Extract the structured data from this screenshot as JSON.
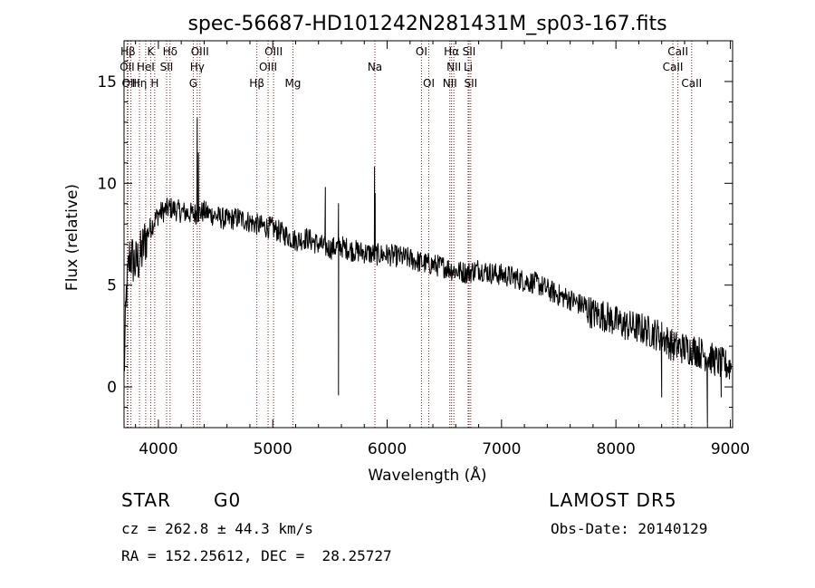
{
  "chart_data": {
    "type": "line",
    "title": "spec-56687-HD101242N281431M_sp03-167.fits",
    "xlabel": "Wavelength (Å)",
    "ylabel": "Flux (relative)",
    "xlim": [
      3700,
      9020
    ],
    "ylim": [
      -2,
      17
    ],
    "x_ticks": [
      4000,
      5000,
      6000,
      7000,
      8000,
      9000
    ],
    "y_ticks": [
      0,
      5,
      10,
      15
    ],
    "grid": false,
    "line_color": "#000000",
    "marker_color": "#8b1a1a",
    "spectrum_anchors": [
      [
        3700,
        0.5
      ],
      [
        3720,
        4.5
      ],
      [
        3750,
        6.5
      ],
      [
        3800,
        6.0
      ],
      [
        3850,
        6.5
      ],
      [
        3900,
        7.5
      ],
      [
        3950,
        8.0
      ],
      [
        4000,
        8.5
      ],
      [
        4100,
        8.8
      ],
      [
        4200,
        8.6
      ],
      [
        4300,
        8.5
      ],
      [
        4400,
        8.6
      ],
      [
        4500,
        8.4
      ],
      [
        4600,
        8.2
      ],
      [
        4700,
        8.3
      ],
      [
        4800,
        8.1
      ],
      [
        4900,
        7.9
      ],
      [
        5000,
        7.8
      ],
      [
        5100,
        7.5
      ],
      [
        5200,
        7.2
      ],
      [
        5300,
        7.3
      ],
      [
        5400,
        7.0
      ],
      [
        5500,
        6.8
      ],
      [
        5600,
        6.9
      ],
      [
        5700,
        6.7
      ],
      [
        5800,
        6.6
      ],
      [
        5900,
        6.5
      ],
      [
        6000,
        6.5
      ],
      [
        6100,
        6.4
      ],
      [
        6200,
        6.3
      ],
      [
        6300,
        6.1
      ],
      [
        6400,
        6.0
      ],
      [
        6500,
        5.9
      ],
      [
        6600,
        5.7
      ],
      [
        6700,
        5.6
      ],
      [
        6800,
        5.8
      ],
      [
        6900,
        5.6
      ],
      [
        7000,
        5.5
      ],
      [
        7100,
        5.4
      ],
      [
        7200,
        5.2
      ],
      [
        7300,
        5.1
      ],
      [
        7400,
        4.8
      ],
      [
        7500,
        4.5
      ],
      [
        7600,
        4.3
      ],
      [
        7700,
        4.0
      ],
      [
        7800,
        3.6
      ],
      [
        7900,
        3.5
      ],
      [
        8000,
        3.2
      ],
      [
        8100,
        3.0
      ],
      [
        8200,
        2.9
      ],
      [
        8300,
        2.7
      ],
      [
        8400,
        2.5
      ],
      [
        8500,
        2.0
      ],
      [
        8600,
        1.9
      ],
      [
        8700,
        1.8
      ],
      [
        8800,
        1.5
      ],
      [
        8900,
        1.2
      ],
      [
        9000,
        1.0
      ]
    ],
    "spectrum_features": [
      {
        "x": 4340,
        "y": 13.2
      },
      {
        "x": 4350,
        "y": 11.5
      },
      {
        "x": 5575,
        "y": -0.4
      },
      {
        "x": 5575,
        "y": 9.0
      },
      {
        "x": 5460,
        "y": 9.8
      },
      {
        "x": 5890,
        "y": 10.8
      },
      {
        "x": 5895,
        "y": 9.5
      },
      {
        "x": 8400,
        "y": -0.5
      },
      {
        "x": 8800,
        "y": -1.8
      },
      {
        "x": 8920,
        "y": -0.5
      }
    ],
    "lines": [
      {
        "label": "Hβ",
        "x": 3734,
        "tier": 1
      },
      {
        "label": "K",
        "x": 3933,
        "tier": 1
      },
      {
        "label": "Hδ",
        "x": 4102,
        "tier": 1
      },
      {
        "label": "OIII",
        "x": 4363,
        "tier": 1
      },
      {
        "label": "OIII",
        "x": 5007,
        "tier": 1
      },
      {
        "label": "OI",
        "x": 6300,
        "tier": 1
      },
      {
        "label": "Hα",
        "x": 6563,
        "tier": 1
      },
      {
        "label": "SII",
        "x": 6716,
        "tier": 1
      },
      {
        "label": "CaII",
        "x": 8542,
        "tier": 1
      },
      {
        "label": "OII",
        "x": 3727,
        "tier": 2
      },
      {
        "label": "HeI",
        "x": 3889,
        "tier": 2
      },
      {
        "label": "SII",
        "x": 4072,
        "tier": 2
      },
      {
        "label": "Hγ",
        "x": 4340,
        "tier": 2
      },
      {
        "label": "OIII",
        "x": 4959,
        "tier": 2
      },
      {
        "label": "Na",
        "x": 5893,
        "tier": 2
      },
      {
        "label": "NII",
        "x": 6583,
        "tier": 2
      },
      {
        "label": "Li",
        "x": 6708,
        "tier": 2
      },
      {
        "label": "CaII",
        "x": 8498,
        "tier": 2
      },
      {
        "label": "OIII",
        "x": 3760,
        "tier": 3
      },
      {
        "label": "Hη",
        "x": 3835,
        "tier": 3
      },
      {
        "label": "H",
        "x": 3968,
        "tier": 3
      },
      {
        "label": "G",
        "x": 4305,
        "tier": 3
      },
      {
        "label": "Hβ",
        "x": 4861,
        "tier": 3
      },
      {
        "label": "Mg",
        "x": 5176,
        "tier": 3
      },
      {
        "label": "OI",
        "x": 6364,
        "tier": 3
      },
      {
        "label": "NII",
        "x": 6548,
        "tier": 3
      },
      {
        "label": "SII",
        "x": 6731,
        "tier": 3
      },
      {
        "label": "CaII",
        "x": 8662,
        "tier": 3
      }
    ]
  },
  "info": {
    "object_class": "STAR",
    "subclass": "G0",
    "survey": "LAMOST DR5",
    "cz": "cz = 262.8 ± 44.3 km/s",
    "obs_date": "Obs-Date: 20140129",
    "radec": "RA = 152.25612, DEC =  28.25727"
  }
}
